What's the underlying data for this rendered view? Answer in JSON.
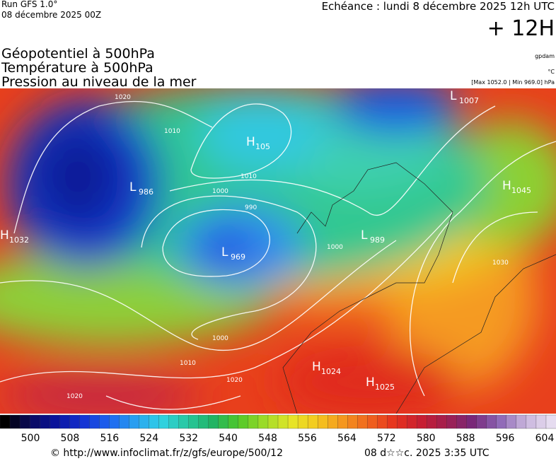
{
  "header": {
    "run": "Run GFS 1.0°",
    "date": "08 décembre 2025 00Z",
    "forecast": "Echéance : lundi 8 décembre 2025 12h UTC",
    "step": "+ 12H",
    "fields": [
      "Géopotentiel à 500hPa",
      "Température à 500hPa",
      "Pression au niveau de la mer"
    ],
    "units": [
      "gpdam",
      "°C",
      "[Max 1052.0 | Min 969.0] hPa"
    ]
  },
  "centers": [
    {
      "type": "L",
      "value": "1007"
    },
    {
      "type": "H",
      "value": "105"
    },
    {
      "type": "L",
      "value": "986"
    },
    {
      "type": "H",
      "value": "1045"
    },
    {
      "type": "L",
      "value": "969"
    },
    {
      "type": "L",
      "value": "989"
    },
    {
      "type": "H",
      "value": "1032"
    },
    {
      "type": "H",
      "value": "1024"
    },
    {
      "type": "H",
      "value": "1025"
    }
  ],
  "isobar_labels": [
    "1020",
    "1010",
    "1000",
    "990",
    "1010",
    "1000",
    "1030",
    "1010",
    "1020",
    "1020",
    "1000"
  ],
  "colorbar": {
    "labels": [
      500,
      508,
      516,
      524,
      532,
      540,
      548,
      556,
      564,
      572,
      580,
      588,
      596,
      604
    ]
  },
  "footer": {
    "url": "© http://www.infoclimat.fr/z/gfs/europe/500/12",
    "time": "08 d☆☆c. 2025  3:35 UTC"
  }
}
